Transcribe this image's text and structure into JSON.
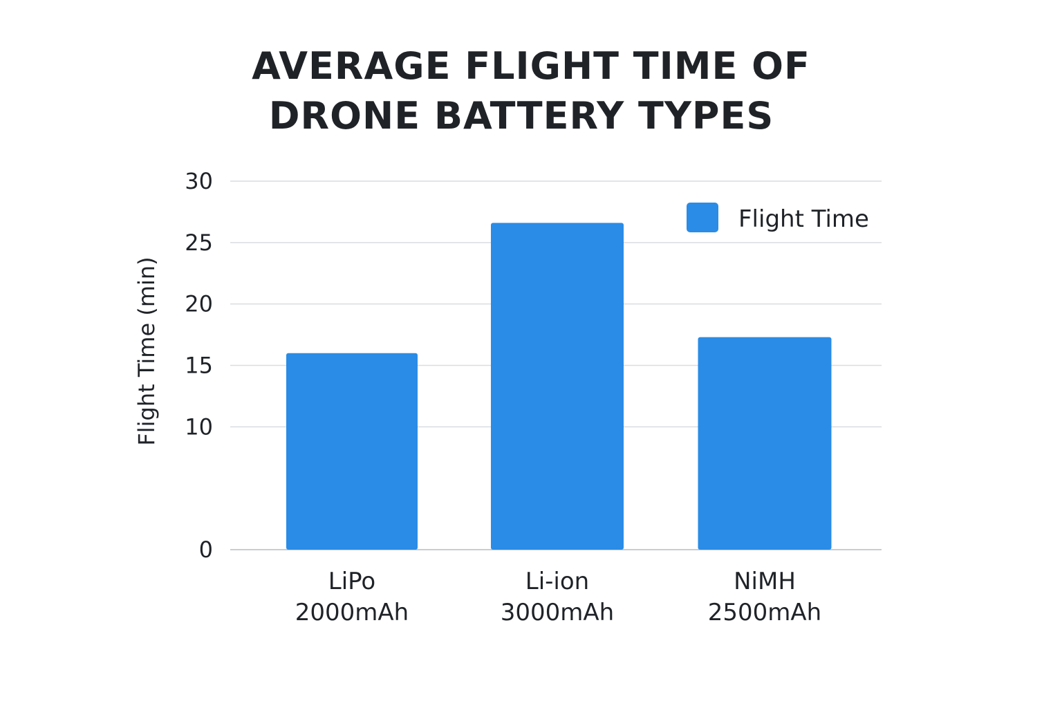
{
  "chart_data": {
    "type": "bar",
    "title_lines": [
      "AVERAGE FLIGHT TIME OF",
      "DRONE BATTERY TYPES"
    ],
    "categories": [
      [
        "LiPo",
        "2000mAh"
      ],
      [
        "Li-ion",
        "3000mAh"
      ],
      [
        "NiMH",
        "2500mAh"
      ]
    ],
    "series": [
      {
        "name": "Flight Time",
        "color": "#2a8ce6",
        "values": [
          16,
          26.6,
          17.3
        ]
      }
    ],
    "xlabel": "",
    "ylabel": "Flight Time (min)",
    "ylim": [
      0,
      30
    ],
    "y_ticks": [
      "0",
      "10",
      "15",
      "20",
      "25",
      "30"
    ],
    "grid": true,
    "legend_position": "top-right"
  }
}
